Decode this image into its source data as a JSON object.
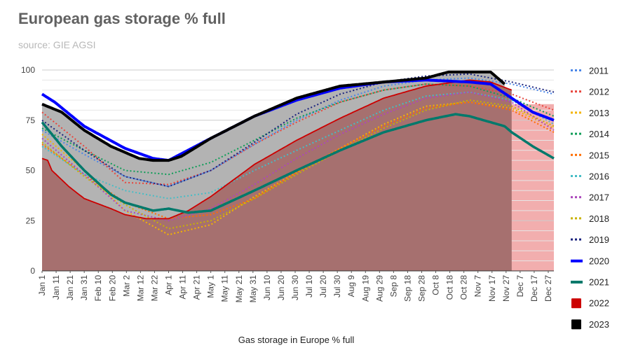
{
  "chart_data": {
    "type": "area",
    "title": "European gas storage % full",
    "subtitle": "source: GIE AGSI",
    "xlabel": "Gas storage in Europe % full",
    "ylabel": "",
    "ylim": [
      0,
      100
    ],
    "yticks": [
      0,
      25,
      50,
      75,
      100
    ],
    "xdomain": [
      1,
      365
    ],
    "xticks": [
      {
        "label": "Jan 1",
        "day": 1
      },
      {
        "label": "Jan 11",
        "day": 11
      },
      {
        "label": "Jan 21",
        "day": 21
      },
      {
        "label": "Jan 31",
        "day": 31
      },
      {
        "label": "Feb 10",
        "day": 41
      },
      {
        "label": "Feb 20",
        "day": 51
      },
      {
        "label": "Mar 2",
        "day": 61
      },
      {
        "label": "Mar 12",
        "day": 71
      },
      {
        "label": "Mar 22",
        "day": 81
      },
      {
        "label": "Apr 1",
        "day": 91
      },
      {
        "label": "Apr 11",
        "day": 101
      },
      {
        "label": "Apr 21",
        "day": 111
      },
      {
        "label": "May 1",
        "day": 121
      },
      {
        "label": "May 11",
        "day": 131
      },
      {
        "label": "May 21",
        "day": 141
      },
      {
        "label": "May 31",
        "day": 151
      },
      {
        "label": "Jun 10",
        "day": 161
      },
      {
        "label": "Jun 20",
        "day": 171
      },
      {
        "label": "Jun 30",
        "day": 181
      },
      {
        "label": "Jul 10",
        "day": 191
      },
      {
        "label": "Jul 20",
        "day": 201
      },
      {
        "label": "Jul 30",
        "day": 211
      },
      {
        "label": "Aug 9",
        "day": 221
      },
      {
        "label": "Aug 19",
        "day": 231
      },
      {
        "label": "Aug 29",
        "day": 241
      },
      {
        "label": "Sep 8",
        "day": 251
      },
      {
        "label": "Sep 18",
        "day": 261
      },
      {
        "label": "Sep 28",
        "day": 271
      },
      {
        "label": "Oct 8",
        "day": 281
      },
      {
        "label": "Oct 18",
        "day": 291
      },
      {
        "label": "Oct 28",
        "day": 301
      },
      {
        "label": "Nov 7",
        "day": 311
      },
      {
        "label": "Nov 17",
        "day": 321
      },
      {
        "label": "Nov 27",
        "day": 331
      },
      {
        "label": "Dec 7",
        "day": 341
      },
      {
        "label": "Dec 17",
        "day": 351
      },
      {
        "label": "Dec 27",
        "day": 361
      }
    ],
    "series": [
      {
        "name": "2011",
        "color": "#4a86e8",
        "style": "dotted",
        "x": [
          1,
          31,
          60,
          91,
          121,
          152,
          182,
          213,
          244,
          274,
          305,
          335,
          365
        ],
        "y": [
          70,
          58,
          47,
          42,
          50,
          63,
          75,
          85,
          92,
          95,
          96,
          93,
          88
        ]
      },
      {
        "name": "2012",
        "color": "#e8453c",
        "style": "dotted",
        "x": [
          1,
          31,
          60,
          91,
          121,
          152,
          182,
          213,
          244,
          274,
          305,
          335,
          365
        ],
        "y": [
          79,
          62,
          44,
          43,
          50,
          63,
          74,
          84,
          90,
          93,
          92,
          88,
          80
        ]
      },
      {
        "name": "2013",
        "color": "#f4b400",
        "style": "dotted",
        "x": [
          1,
          31,
          60,
          91,
          121,
          152,
          182,
          213,
          244,
          274,
          305,
          335,
          365
        ],
        "y": [
          68,
          50,
          30,
          18,
          23,
          37,
          49,
          61,
          73,
          82,
          84,
          81,
          71
        ]
      },
      {
        "name": "2014",
        "color": "#0f9d58",
        "style": "dotted",
        "x": [
          1,
          31,
          60,
          91,
          121,
          152,
          182,
          213,
          244,
          274,
          305,
          335,
          365
        ],
        "y": [
          71,
          60,
          50,
          48,
          54,
          65,
          76,
          84,
          90,
          93,
          92,
          86,
          77
        ]
      },
      {
        "name": "2015",
        "color": "#ff6d00",
        "style": "dotted",
        "x": [
          1,
          31,
          60,
          91,
          121,
          152,
          182,
          213,
          244,
          274,
          305,
          335,
          365
        ],
        "y": [
          63,
          48,
          34,
          26,
          28,
          36,
          49,
          61,
          72,
          81,
          84,
          80,
          69
        ]
      },
      {
        "name": "2016",
        "color": "#46bdc6",
        "style": "dotted",
        "x": [
          1,
          31,
          60,
          91,
          121,
          152,
          182,
          213,
          244,
          274,
          305,
          335,
          365
        ],
        "y": [
          62,
          48,
          40,
          36,
          39,
          50,
          60,
          70,
          80,
          87,
          89,
          85,
          73
        ]
      },
      {
        "name": "2017",
        "color": "#ab47bc",
        "style": "dotted",
        "x": [
          1,
          31,
          60,
          91,
          121,
          152,
          182,
          213,
          244,
          274,
          305,
          335,
          365
        ],
        "y": [
          66,
          48,
          30,
          25,
          31,
          43,
          56,
          68,
          78,
          86,
          89,
          84,
          70
        ]
      },
      {
        "name": "2018",
        "color": "#c9b200",
        "style": "dotted",
        "x": [
          1,
          31,
          60,
          91,
          121,
          152,
          182,
          213,
          244,
          274,
          305,
          335,
          365
        ],
        "y": [
          64,
          47,
          33,
          21,
          25,
          36,
          48,
          60,
          71,
          80,
          85,
          82,
          72
        ]
      },
      {
        "name": "2019",
        "color": "#1a237e",
        "style": "dotted",
        "x": [
          1,
          31,
          60,
          91,
          121,
          152,
          182,
          213,
          244,
          274,
          305,
          335,
          365
        ],
        "y": [
          75,
          60,
          47,
          42,
          50,
          64,
          78,
          88,
          94,
          97,
          98,
          94,
          89
        ]
      },
      {
        "name": "2020",
        "color": "#0000ff",
        "style": "solid",
        "width": 4,
        "x": [
          1,
          10,
          31,
          60,
          80,
          91,
          121,
          152,
          182,
          213,
          244,
          274,
          305,
          320,
          335,
          350,
          365
        ],
        "y": [
          88,
          84,
          72,
          61,
          56,
          55,
          66,
          77,
          85,
          91,
          94,
          95,
          94,
          93,
          86,
          79,
          75
        ]
      },
      {
        "name": "2021",
        "color": "#00796b",
        "style": "solid",
        "width": 3.5,
        "x": [
          1,
          15,
          31,
          50,
          60,
          80,
          91,
          105,
          121,
          152,
          182,
          213,
          244,
          274,
          295,
          305,
          320,
          330,
          335,
          350,
          365
        ],
        "y": [
          74,
          62,
          50,
          38,
          34,
          30,
          31,
          29,
          30,
          40,
          50,
          60,
          69,
          75,
          78,
          77,
          74,
          72,
          69,
          62,
          56
        ]
      },
      {
        "name": "2022",
        "color": "#cc0000",
        "style": "area",
        "x": [
          1,
          5,
          8,
          20,
          31,
          50,
          60,
          75,
          91,
          105,
          121,
          152,
          182,
          213,
          244,
          274,
          305,
          320,
          335
        ],
        "y": [
          56,
          55,
          50,
          42,
          36,
          31,
          28,
          26,
          26,
          30,
          37,
          53,
          65,
          76,
          86,
          92,
          95,
          94,
          90
        ]
      },
      {
        "name": "2023",
        "color": "#000000",
        "style": "area",
        "x": [
          1,
          15,
          31,
          50,
          70,
          80,
          91,
          100,
          121,
          152,
          182,
          213,
          244,
          274,
          290,
          305,
          320,
          330
        ],
        "y": [
          83,
          79,
          70,
          62,
          56,
          55,
          55,
          57,
          66,
          77,
          86,
          92,
          94,
          96,
          99,
          99,
          99,
          93
        ]
      }
    ]
  }
}
